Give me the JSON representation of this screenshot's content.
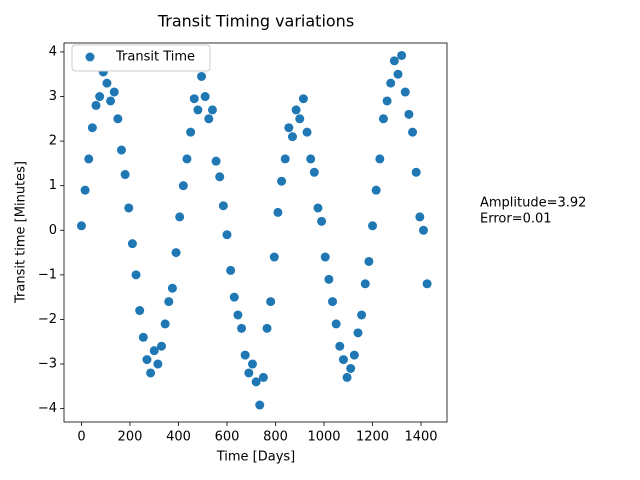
{
  "chart_data": {
    "type": "scatter",
    "title": "Transit Timing variations",
    "xlabel": "Time [Days]",
    "ylabel": "Transit time [Minutes]",
    "annotations": [
      "Amplitude=3.92",
      "Error=0.01"
    ],
    "legend": "upper left",
    "series": [
      {
        "name": "Transit Time",
        "color": "#1f77b4",
        "x": [
          0,
          15,
          30,
          45,
          60,
          75,
          90,
          105,
          120,
          135,
          150,
          165,
          180,
          195,
          210,
          225,
          240,
          255,
          270,
          285,
          300,
          315,
          330,
          345,
          360,
          375,
          390,
          405,
          420,
          435,
          450,
          465,
          480,
          495,
          510,
          525,
          540,
          555,
          570,
          585,
          600,
          615,
          630,
          645,
          660,
          675,
          690,
          705,
          720,
          735,
          750,
          765,
          780,
          795,
          810,
          825,
          840,
          855,
          870,
          885,
          900,
          915,
          930,
          945,
          960,
          975,
          990,
          1005,
          1020,
          1035,
          1050,
          1065,
          1080,
          1095,
          1110,
          1125,
          1140,
          1155,
          1170,
          1185,
          1200,
          1215,
          1230,
          1245,
          1260,
          1275,
          1290,
          1305,
          1320,
          1335,
          1350,
          1365,
          1380,
          1395,
          1410,
          1425
        ],
        "values": [
          0.1,
          0.9,
          1.6,
          2.3,
          2.8,
          3.0,
          3.55,
          3.3,
          2.9,
          3.1,
          2.5,
          1.8,
          1.25,
          0.5,
          -0.3,
          -1.0,
          -1.8,
          -2.4,
          -2.9,
          -3.2,
          -2.7,
          -3.0,
          -2.6,
          -2.1,
          -1.6,
          -1.3,
          -0.5,
          0.3,
          1.0,
          1.6,
          2.2,
          2.95,
          2.7,
          3.45,
          3.0,
          2.5,
          2.7,
          1.55,
          1.2,
          0.55,
          -0.1,
          -0.9,
          -1.5,
          -1.9,
          -2.2,
          -2.8,
          -3.2,
          -3.0,
          -3.4,
          -3.92,
          -3.3,
          -2.2,
          -1.6,
          -0.6,
          0.4,
          1.1,
          1.6,
          2.3,
          2.1,
          2.7,
          2.5,
          2.95,
          2.2,
          1.6,
          1.3,
          0.5,
          0.2,
          -0.6,
          -1.1,
          -1.6,
          -2.1,
          -2.6,
          -2.9,
          -3.3,
          -3.1,
          -2.8,
          -2.3,
          -1.9,
          -1.2,
          -0.7,
          0.1,
          0.9,
          1.6,
          2.5,
          2.9,
          3.3,
          3.8,
          3.5,
          3.92,
          3.1,
          2.6,
          2.2,
          1.3,
          0.3,
          0.0,
          -1.2
        ]
      }
    ],
    "xlim": [
      -72,
      1507
    ],
    "ylim": [
      -4.3,
      4.2
    ],
    "xticks": [
      0,
      200,
      400,
      600,
      800,
      1000,
      1200,
      1400
    ],
    "yticks": [
      {
        "value": -4,
        "label": "−4"
      },
      {
        "value": -3,
        "label": "−3"
      },
      {
        "value": -2,
        "label": "−2"
      },
      {
        "value": -1,
        "label": "−1"
      },
      0,
      1,
      2,
      3,
      4
    ]
  }
}
